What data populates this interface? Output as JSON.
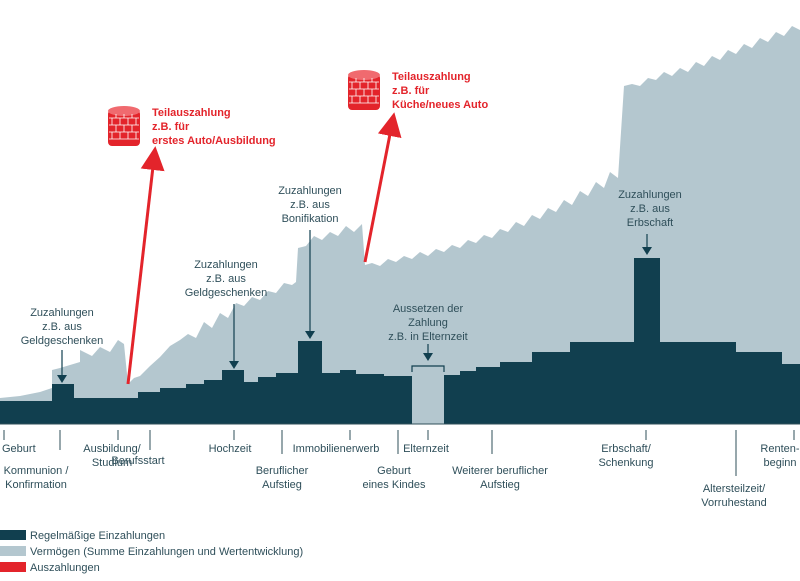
{
  "colors": {
    "regular": "#113f4f",
    "wealth": "#b4c7cf",
    "payout": "#e3242b",
    "text": "#2f4f5a",
    "coin": "#e3242b"
  },
  "icons": {
    "coin_stack": "coin-stack-icon"
  },
  "annotations": {
    "geldgeschenken_1": [
      "Zuzahlungen",
      "z.B. aus",
      "Geldgeschenken"
    ],
    "geldgeschenken_2": [
      "Zuzahlungen",
      "z.B. aus",
      "Geldgeschenken"
    ],
    "bonifikation": [
      "Zuzahlungen",
      "z.B. aus",
      "Bonifikation"
    ],
    "elternzeit": [
      "Aussetzen der",
      "Zahlung",
      "z.B. in Elternzeit"
    ],
    "erbschaft": [
      "Zuzahlungen",
      "z.B. aus",
      "Erbschaft"
    ]
  },
  "payouts": {
    "first": [
      "Teilauszahlung",
      "z.B. für",
      "erstes Auto/Ausbildung"
    ],
    "second": [
      "Teilauszahlung",
      "z.B. für",
      "Küche/neues Auto"
    ]
  },
  "milestones": {
    "geburt": [
      "Geburt"
    ],
    "kommunion": [
      "Kommunion /",
      "Konfirmation"
    ],
    "ausbildung": [
      "Ausbildung/",
      "Studium"
    ],
    "berufsstart": [
      "Berufsstart"
    ],
    "hochzeit": [
      "Hochzeit"
    ],
    "beruflicher_aufstieg": [
      "Beruflicher",
      "Aufstieg"
    ],
    "immobilienerwerb": [
      "Immobilienerwerb"
    ],
    "geburt_kind": [
      "Geburt",
      "eines Kindes"
    ],
    "elternzeit": [
      "Elternzeit"
    ],
    "weiterer_aufstieg": [
      "Weiterer beruflicher",
      "Aufstieg"
    ],
    "erbschaft": [
      "Erbschaft/",
      "Schenkung"
    ],
    "altersteilzeit": [
      "Altersteilzeit/",
      "Vorruhestand"
    ],
    "rentenbeginn": [
      "Renten-",
      "beginn"
    ]
  },
  "legend": {
    "regular": "Regelmäßige Einzahlungen",
    "wealth": "Vermögen (Summe Einzahlungen und Wertentwicklung)",
    "payout": "Auszahlungen"
  }
}
